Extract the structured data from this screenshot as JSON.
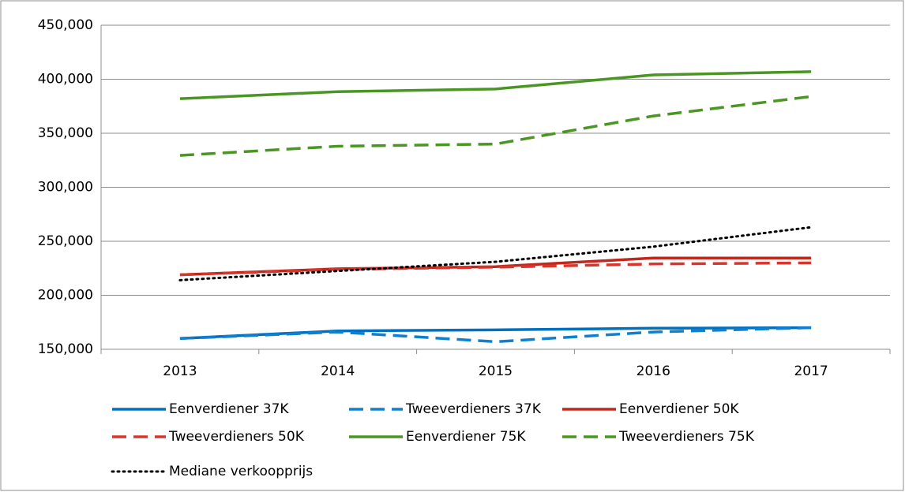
{
  "chart_data": {
    "type": "line",
    "categories": [
      "2013",
      "2014",
      "2015",
      "2016",
      "2017"
    ],
    "series": [
      {
        "name": "Eenverdiener 37K",
        "color": "#0070c0",
        "dash": "solid",
        "values": [
          160000,
          167000,
          168000,
          169500,
          170000
        ]
      },
      {
        "name": "Tweeverdieners 37K",
        "color": "#0f7fd0",
        "dash": "dashed",
        "values": [
          160000,
          166000,
          157000,
          166000,
          170000
        ]
      },
      {
        "name": "Eenverdiener 50K",
        "color": "#c0281e",
        "dash": "solid",
        "values": [
          219000,
          224500,
          226500,
          234500,
          234500
        ]
      },
      {
        "name": "Tweeverdieners 50K",
        "color": "#d9352a",
        "dash": "dashed",
        "values": [
          219000,
          224000,
          226000,
          229000,
          230000
        ]
      },
      {
        "name": "Eenverdiener 75K",
        "color": "#4a9622",
        "dash": "solid",
        "values": [
          382000,
          388500,
          391000,
          404000,
          407000
        ]
      },
      {
        "name": "Tweeverdieners 75K",
        "color": "#4a9622",
        "dash": "dashed",
        "values": [
          329500,
          338000,
          340000,
          366000,
          384000
        ]
      },
      {
        "name": "Mediane verkoopprijs",
        "color": "#000000",
        "dash": "dotted",
        "values": [
          214000,
          222500,
          231000,
          245000,
          263000
        ]
      }
    ],
    "ylim": [
      150000,
      450000
    ],
    "yticks": [
      {
        "value": 150000,
        "label": "150,000"
      },
      {
        "value": 200000,
        "label": "200,000"
      },
      {
        "value": 250000,
        "label": "250,000"
      },
      {
        "value": 300000,
        "label": "300,000"
      },
      {
        "value": 350000,
        "label": "350,000"
      },
      {
        "value": 400000,
        "label": "400,000"
      },
      {
        "value": 450000,
        "label": "450,000"
      }
    ],
    "grid": true,
    "legend": "bottom"
  }
}
